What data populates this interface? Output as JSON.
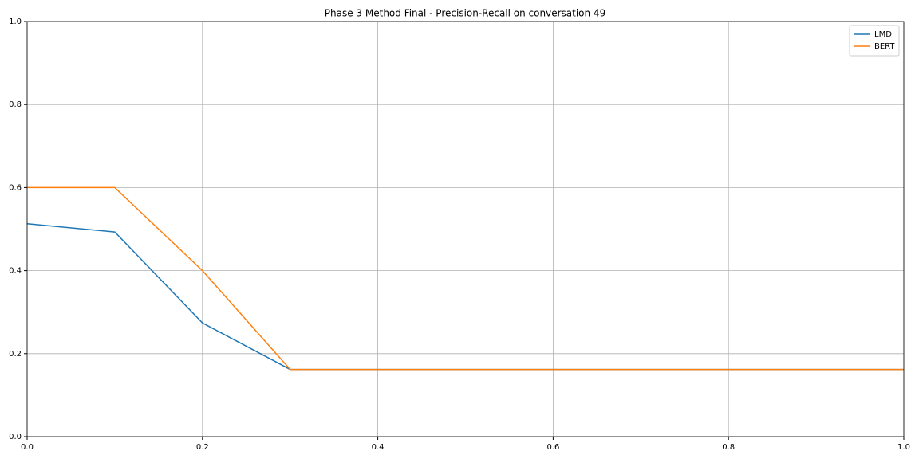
{
  "chart_data": {
    "type": "line",
    "title": "Phase 3 Method Final - Precision-Recall on conversation 49",
    "x": [
      0,
      0.1,
      0.2,
      0.3,
      0.4,
      0.5,
      0.6,
      0.7,
      0.8,
      0.9,
      1.0
    ],
    "series": [
      {
        "name": "LMD",
        "color": "#1f77b4",
        "values": [
          0.513,
          0.493,
          0.274,
          0.162,
          0.162,
          0.162,
          0.162,
          0.162,
          0.162,
          0.162,
          0.162
        ]
      },
      {
        "name": "BERT",
        "color": "#ff7f0e",
        "values": [
          0.6,
          0.6,
          0.4,
          0.162,
          0.162,
          0.162,
          0.162,
          0.162,
          0.162,
          0.162,
          0.162
        ]
      }
    ],
    "xlim": [
      0,
      1
    ],
    "ylim": [
      0,
      1
    ],
    "xticks": [
      {
        "value": 0,
        "label": "0.0"
      },
      0.2,
      0.4,
      0.6,
      0.8,
      {
        "value": 1,
        "label": "1.0"
      }
    ],
    "yticks": [
      {
        "value": 0,
        "label": "0.0"
      },
      0.2,
      0.4,
      0.6,
      0.8,
      {
        "value": 1,
        "label": "1.0"
      }
    ],
    "grid": true,
    "legend": "upper right"
  }
}
